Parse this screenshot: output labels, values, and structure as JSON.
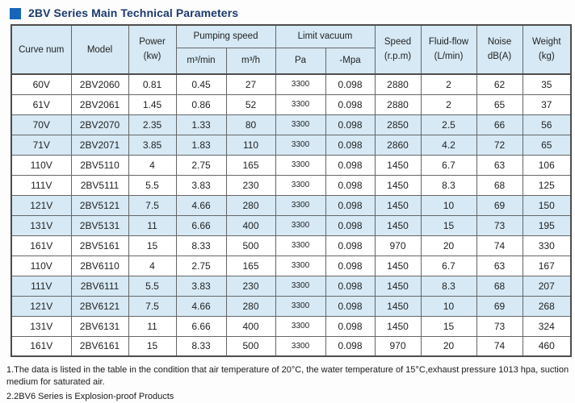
{
  "title": "2BV Series Main Technical Parameters",
  "colors": {
    "accent_square": "#1565b8",
    "title_text": "#1c3a6d",
    "header_and_shaded_row_bg": "#d6e9f5",
    "grid_border": "#666666",
    "outer_border": "#4d4d4d"
  },
  "table": {
    "headers": {
      "curve_num": "Curve num",
      "model": "Model",
      "power_line1": "Power",
      "power_line2": "(kw)",
      "pumping_speed": "Pumping speed",
      "m3_min": "m³/min",
      "m3_h": "m³/h",
      "limit_vacuum": "Limit vacuum",
      "pa": "Pa",
      "mpa": "-Mpa",
      "speed_line1": "Speed",
      "speed_line2": "(r.p.m)",
      "fluid_line1": "Fluid-flow",
      "fluid_line2": "(L/min)",
      "noise_line1": "Noise",
      "noise_line2": "dB(A)",
      "weight_line1": "Weight",
      "weight_line2": "(kg)"
    },
    "column_keys": [
      "curve-num",
      "model",
      "power",
      "m3-min",
      "m3-h",
      "pa",
      "mpa",
      "speed",
      "fluid-flow",
      "noise",
      "weight"
    ],
    "rows": [
      {
        "shaded": false,
        "cells": [
          "60V",
          "2BV2060",
          "0.81",
          "0.45",
          "27",
          "3300",
          "0.098",
          "2880",
          "2",
          "62",
          "35"
        ]
      },
      {
        "shaded": false,
        "cells": [
          "61V",
          "2BV2061",
          "1.45",
          "0.86",
          "52",
          "3300",
          "0.098",
          "2880",
          "2",
          "65",
          "37"
        ]
      },
      {
        "shaded": true,
        "cells": [
          "70V",
          "2BV2070",
          "2.35",
          "1.33",
          "80",
          "3300",
          "0.098",
          "2850",
          "2.5",
          "66",
          "56"
        ]
      },
      {
        "shaded": true,
        "cells": [
          "71V",
          "2BV2071",
          "3.85",
          "1.83",
          "110",
          "3300",
          "0.098",
          "2860",
          "4.2",
          "72",
          "65"
        ]
      },
      {
        "shaded": false,
        "cells": [
          "110V",
          "2BV5110",
          "4",
          "2.75",
          "165",
          "3300",
          "0.098",
          "1450",
          "6.7",
          "63",
          "106"
        ]
      },
      {
        "shaded": false,
        "cells": [
          "111V",
          "2BV5111",
          "5.5",
          "3.83",
          "230",
          "3300",
          "0.098",
          "1450",
          "8.3",
          "68",
          "125"
        ]
      },
      {
        "shaded": true,
        "cells": [
          "121V",
          "2BV5121",
          "7.5",
          "4.66",
          "280",
          "3300",
          "0.098",
          "1450",
          "10",
          "69",
          "150"
        ]
      },
      {
        "shaded": true,
        "cells": [
          "131V",
          "2BV5131",
          "11",
          "6.66",
          "400",
          "3300",
          "0.098",
          "1450",
          "15",
          "73",
          "195"
        ]
      },
      {
        "shaded": false,
        "cells": [
          "161V",
          "2BV5161",
          "15",
          "8.33",
          "500",
          "3300",
          "0.098",
          "970",
          "20",
          "74",
          "330"
        ]
      },
      {
        "shaded": false,
        "cells": [
          "110V",
          "2BV6110",
          "4",
          "2.75",
          "165",
          "3300",
          "0.098",
          "1450",
          "6.7",
          "63",
          "167"
        ]
      },
      {
        "shaded": true,
        "cells": [
          "111V",
          "2BV6111",
          "5.5",
          "3.83",
          "230",
          "3300",
          "0.098",
          "1450",
          "8.3",
          "68",
          "207"
        ]
      },
      {
        "shaded": true,
        "cells": [
          "121V",
          "2BV6121",
          "7.5",
          "4.66",
          "280",
          "3300",
          "0.098",
          "1450",
          "10",
          "69",
          "268"
        ]
      },
      {
        "shaded": false,
        "cells": [
          "131V",
          "2BV6131",
          "11",
          "6.66",
          "400",
          "3300",
          "0.098",
          "1450",
          "15",
          "73",
          "324"
        ]
      },
      {
        "shaded": false,
        "cells": [
          "161V",
          "2BV6161",
          "15",
          "8.33",
          "500",
          "3300",
          "0.098",
          "970",
          "20",
          "74",
          "460"
        ]
      }
    ]
  },
  "notes": [
    "1.The data is listed in the table in the condition that air temperature of 20°C, the water temperature of 15°C,exhaust pressure 1013 hpa, suction medium for saturated air.",
    "2.2BV6 Series is Explosion-proof Products"
  ]
}
